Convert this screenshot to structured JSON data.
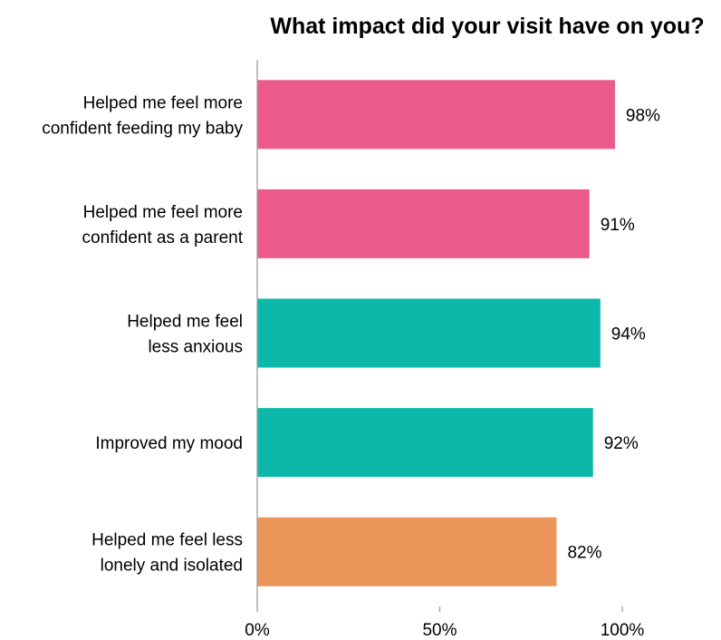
{
  "chart_data": {
    "type": "bar",
    "orientation": "horizontal",
    "title": "What impact did your visit have on you?",
    "categories": [
      [
        "Helped me feel more",
        "confident feeding my baby"
      ],
      [
        "Helped me feel more",
        "confident as a parent"
      ],
      [
        "Helped me feel",
        "less anxious"
      ],
      [
        "Improved my mood"
      ],
      [
        "Helped me feel less",
        "lonely and isolated"
      ]
    ],
    "values": [
      98,
      91,
      94,
      92,
      82
    ],
    "value_labels": [
      "98%",
      "91%",
      "94%",
      "92%",
      "82%"
    ],
    "bar_colors": [
      "#ec5a8c",
      "#ec5a8c",
      "#0db8ab",
      "#0db8ab",
      "#ec955b"
    ],
    "xlim": [
      0,
      100
    ],
    "x_ticks": [
      0,
      50,
      100
    ],
    "x_tick_labels": [
      "0%",
      "50%",
      "100%"
    ],
    "xlabel": "",
    "ylabel": "",
    "grid": false,
    "legend": "none"
  }
}
